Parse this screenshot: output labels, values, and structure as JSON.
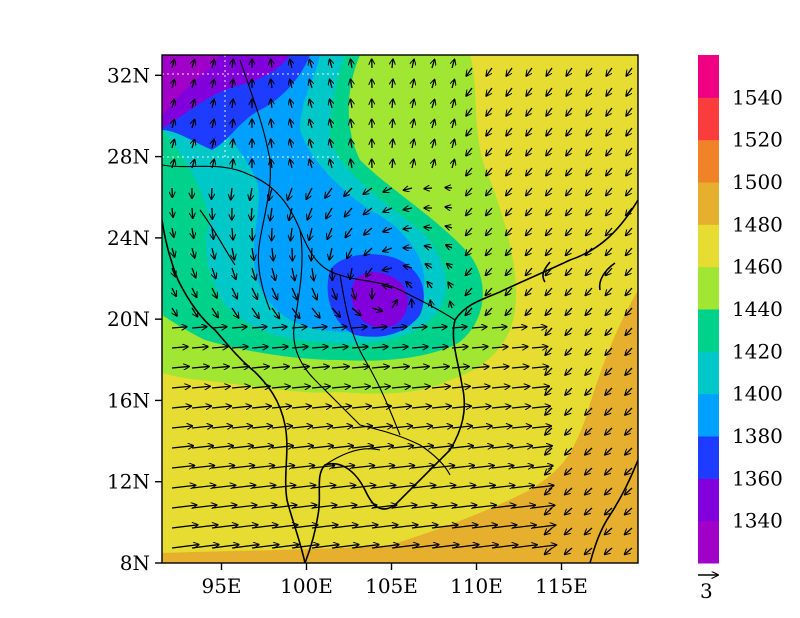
{
  "map": {
    "lat_labels": [
      "32N",
      "28N",
      "24N",
      "20N",
      "16N",
      "12N",
      "8N"
    ],
    "lon_labels": [
      "95E",
      "100E",
      "105E",
      "110E",
      "115E"
    ],
    "lat_values": [
      32,
      28,
      24,
      20,
      16,
      12,
      8
    ],
    "lon_values": [
      95,
      100,
      105,
      110,
      115
    ],
    "extent": {
      "lon": [
        91.5,
        119.5
      ],
      "lat": [
        8,
        33
      ]
    },
    "field": "geopotential height",
    "vectors": "wind"
  },
  "colorbar": {
    "labels": [
      "1340",
      "1360",
      "1380",
      "1400",
      "1420",
      "1440",
      "1460",
      "1480",
      "1500",
      "1520",
      "1540"
    ],
    "colors": [
      "#a000c8",
      "#8200dc",
      "#1e3cff",
      "#00a0ff",
      "#00c8c8",
      "#00d28c",
      "#a0e632",
      "#e6dc32",
      "#e6af2d",
      "#f08228",
      "#fa3c3c",
      "#f00082"
    ]
  },
  "reference_vector": {
    "label": "3"
  },
  "style": {
    "land_line": "#000000",
    "grid": "#ffffff"
  }
}
